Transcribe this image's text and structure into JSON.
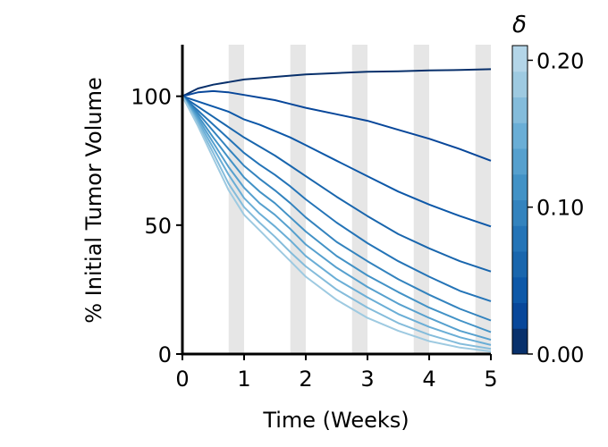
{
  "chart_data": {
    "type": "line",
    "xlabel": "Time (Weeks)",
    "ylabel": "% Initial Tumor Volume",
    "xlim": [
      0,
      5
    ],
    "ylim": [
      0,
      120
    ],
    "xticks": [
      0,
      1,
      2,
      3,
      4,
      5
    ],
    "xtick_labels": [
      "0",
      "1",
      "2",
      "3",
      "4",
      "5"
    ],
    "yticks": [
      0,
      50,
      100
    ],
    "ytick_labels": [
      "0",
      "50",
      "100"
    ],
    "shaded_bands": [
      {
        "start": 0.75,
        "end": 1.0
      },
      {
        "start": 1.75,
        "end": 2.0
      },
      {
        "start": 2.75,
        "end": 3.0
      },
      {
        "start": 3.75,
        "end": 4.0
      },
      {
        "start": 4.75,
        "end": 5.0
      }
    ],
    "band_color": "#e6e6e6",
    "x": [
      0,
      0.25,
      0.5,
      0.75,
      1.0,
      1.25,
      1.5,
      1.75,
      2.0,
      2.5,
      3.0,
      3.5,
      4.0,
      4.5,
      5.0
    ],
    "series": [
      {
        "delta": 0.0,
        "color": "#08306b",
        "values": [
          100,
          103,
          104.5,
          105.5,
          106.5,
          107,
          107.5,
          108,
          108.5,
          109,
          109.5,
          109.7,
          110,
          110.2,
          110.5
        ]
      },
      {
        "delta": 0.02,
        "color": "#08479a",
        "values": [
          100,
          101.5,
          102,
          101.5,
          100.5,
          99.5,
          98.5,
          97,
          95.5,
          93,
          90.5,
          87,
          83.5,
          79.5,
          75
        ]
      },
      {
        "delta": 0.04,
        "color": "#0d58a8",
        "values": [
          100,
          98,
          96,
          94,
          91,
          89,
          86.5,
          84,
          81,
          75,
          69,
          63,
          58,
          53.5,
          49.5
        ]
      },
      {
        "delta": 0.06,
        "color": "#1966ad",
        "values": [
          100,
          96,
          92,
          88,
          84,
          80.5,
          77,
          73,
          69,
          61,
          53.5,
          46.5,
          41,
          36,
          32
        ]
      },
      {
        "delta": 0.08,
        "color": "#2474b7",
        "values": [
          100,
          94.5,
          89,
          83.5,
          78,
          73.5,
          69.5,
          65,
          60,
          51,
          43,
          36,
          30,
          24.5,
          20.5
        ]
      },
      {
        "delta": 0.1,
        "color": "#3383be",
        "values": [
          100,
          93.5,
          86.5,
          79.5,
          73,
          68,
          63.5,
          58.5,
          53,
          43.5,
          36,
          29,
          23,
          17.5,
          13
        ]
      },
      {
        "delta": 0.12,
        "color": "#4292c6",
        "values": [
          100,
          92.5,
          84,
          76,
          68.5,
          63,
          58.5,
          53,
          47.5,
          38,
          30.5,
          24,
          18,
          13,
          8.5
        ]
      },
      {
        "delta": 0.14,
        "color": "#56a0ce",
        "values": [
          100,
          91.5,
          82,
          72.5,
          64.5,
          58.5,
          54,
          48.5,
          42.5,
          33.5,
          26,
          19.5,
          14,
          9,
          5.5
        ]
      },
      {
        "delta": 0.16,
        "color": "#6aaed6",
        "values": [
          100,
          90.5,
          80,
          69.5,
          60.5,
          54.5,
          49.5,
          44,
          38,
          29,
          22,
          15.5,
          10.5,
          6.5,
          3.5
        ]
      },
      {
        "delta": 0.18,
        "color": "#84bcdb",
        "values": [
          100,
          89.5,
          78,
          66,
          57,
          51,
          45.5,
          39.5,
          34,
          25,
          18,
          12,
          7.5,
          4,
          2
        ]
      },
      {
        "delta": 0.2,
        "color": "#9ecae1",
        "values": [
          100,
          88.5,
          76,
          63.5,
          54,
          48,
          42,
          36,
          30,
          21,
          14,
          9,
          5,
          2.5,
          1
        ]
      }
    ],
    "colorbar": {
      "title": "δ",
      "range": [
        0,
        0.21
      ],
      "ticks": [
        0.0,
        0.1,
        0.2
      ],
      "tick_labels": [
        "0.00",
        "0.10",
        "0.20"
      ],
      "colors": [
        "#08306b",
        "#08479a",
        "#0d58a8",
        "#1966ad",
        "#2474b7",
        "#3383be",
        "#4292c6",
        "#56a0ce",
        "#6aaed6",
        "#84bcdb",
        "#9ecae1",
        "#b3d5e8"
      ]
    }
  }
}
